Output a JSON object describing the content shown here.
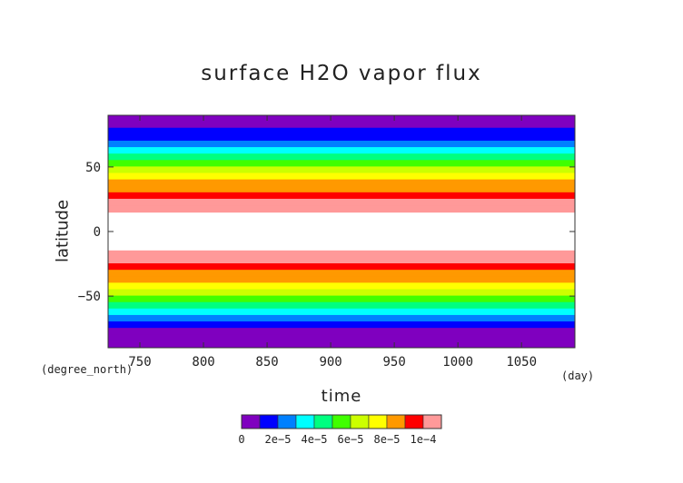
{
  "chart_data": {
    "type": "heatmap",
    "title": "surface H2O vapor flux",
    "xlabel": "time",
    "ylabel": "latitude",
    "x_units": "(day)",
    "y_units": "(degree_north)",
    "xlim": [
      725,
      1092
    ],
    "ylim": [
      -90,
      90
    ],
    "x_ticks": [
      750,
      800,
      850,
      900,
      950,
      1000,
      1050
    ],
    "y_ticks": [
      50,
      0,
      -50
    ],
    "y_tick_labels": [
      "50",
      "0",
      "−50"
    ],
    "colorbar": {
      "levels": [
        0,
        1e-05,
        2e-05,
        3e-05,
        4e-05,
        5e-05,
        6e-05,
        7e-05,
        8e-05,
        9e-05,
        0.0001,
        0.00011
      ],
      "tick_labels": [
        "0",
        "2e−5",
        "4e−5",
        "6e−5",
        "8e−5",
        "1e−4"
      ],
      "colors": [
        "#7f00bf",
        "#0000ff",
        "#0080ff",
        "#00ffff",
        "#00ff80",
        "#40ff00",
        "#ccff00",
        "#ffff00",
        "#ff9900",
        "#ff0000",
        "#ff9999"
      ]
    },
    "latitude_profile": {
      "latitude": [
        90,
        85,
        80,
        75,
        70,
        65,
        60,
        55,
        50,
        45,
        40,
        35,
        30,
        25,
        20,
        15,
        10,
        5,
        0,
        -5,
        -10,
        -15,
        -20,
        -25,
        -30,
        -35,
        -40,
        -45,
        -50,
        -55,
        -60,
        -65,
        -70,
        -75,
        -80,
        -85,
        -90
      ],
      "flux": [
        0,
        5e-06,
        8e-06,
        1.3e-05,
        2.2e-05,
        3.2e-05,
        4.2e-05,
        5.2e-05,
        6.1e-05,
        7e-05,
        7.8e-05,
        8.6e-05,
        9.4e-05,
        0.000101,
        0.000107,
        0.000112,
        0.000118,
        0.000122,
        0.000125,
        0.000122,
        0.000118,
        0.000112,
        0.000105,
        9.9e-05,
        9.3e-05,
        8.6e-05,
        7.7e-05,
        6.9e-05,
        6e-05,
        5e-05,
        4.1e-05,
        3.1e-05,
        2.1e-05,
        1.2e-05,
        7e-06,
        4e-06,
        0
      ]
    }
  }
}
